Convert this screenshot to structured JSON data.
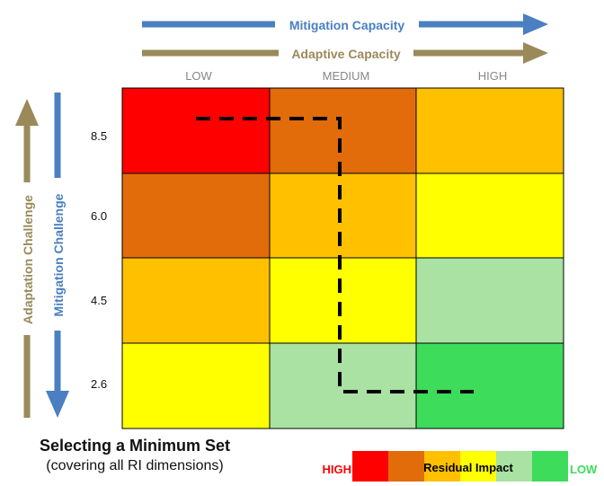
{
  "colors": {
    "blue": "#4a7fc1",
    "khaki": "#9a8a5a",
    "red": "#ff0000",
    "dark_orange": "#e26b0a",
    "orange": "#ffc000",
    "yellow": "#ffff00",
    "light_green": "#a9e2a3",
    "green": "#3ddc5a"
  },
  "header": {
    "mitigation_capacity": "Mitigation Capacity",
    "adaptive_capacity": "Adaptive Capacity"
  },
  "columns": [
    "LOW",
    "MEDIUM",
    "HIGH"
  ],
  "rows": [
    "8.5",
    "6.0",
    "4.5",
    "2.6"
  ],
  "side": {
    "adaptation_challenge": "Adaptation Challenge",
    "mitigation_challenge": "Mitigation Challenge"
  },
  "grid": [
    [
      "red",
      "dark_orange",
      "orange"
    ],
    [
      "dark_orange",
      "orange",
      "yellow"
    ],
    [
      "orange",
      "yellow",
      "light_green"
    ],
    [
      "yellow",
      "light_green",
      "green"
    ]
  ],
  "caption": {
    "title": "Selecting a Minimum Set",
    "subtitle": "(covering all RI dimensions)"
  },
  "legend": {
    "high": "HIGH",
    "label": "Residual Impact",
    "low": "LOW",
    "swatches": [
      "red",
      "dark_orange",
      "orange",
      "yellow",
      "light_green",
      "green"
    ]
  }
}
